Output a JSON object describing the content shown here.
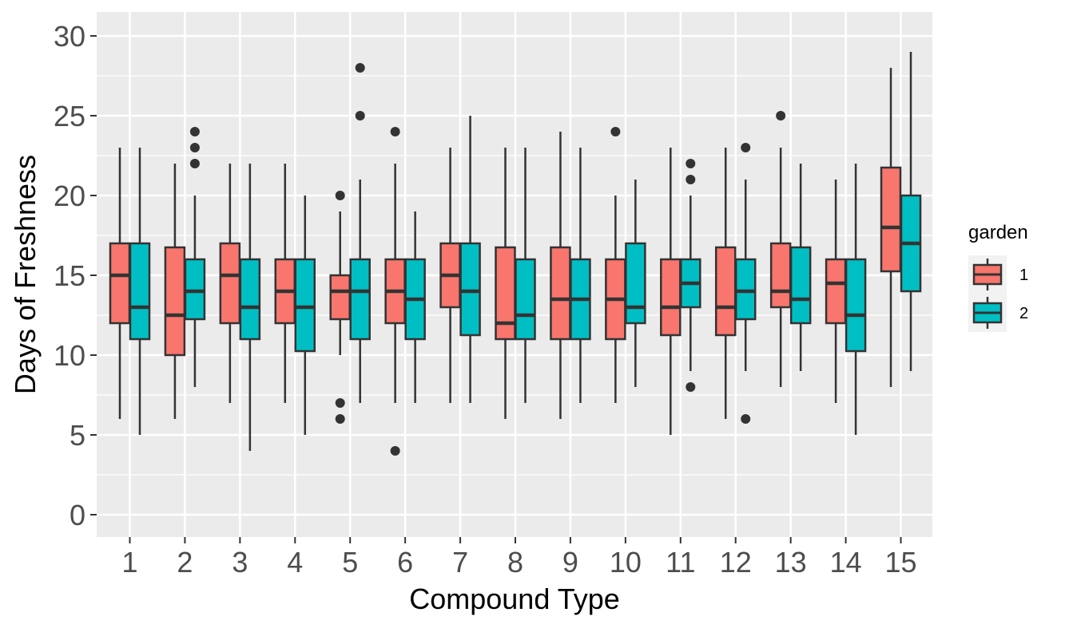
{
  "chart_data": {
    "type": "boxplot",
    "xlabel": "Compound Type",
    "ylabel": "Days of Freshness",
    "ylim": [
      -1.5,
      31.5
    ],
    "yticks": [
      0,
      5,
      10,
      15,
      20,
      25,
      30
    ],
    "categories": [
      "1",
      "2",
      "3",
      "4",
      "5",
      "6",
      "7",
      "8",
      "9",
      "10",
      "11",
      "12",
      "13",
      "14",
      "15"
    ],
    "grid": true,
    "legend": {
      "title": "garden",
      "position": "right"
    },
    "series": [
      {
        "name": "1",
        "color": "#F8766D",
        "boxes": [
          {
            "whisker_low": 6,
            "q1": 12,
            "median": 15,
            "q3": 17,
            "whisker_high": 23,
            "outliers": []
          },
          {
            "whisker_low": 6,
            "q1": 10,
            "median": 12.5,
            "q3": 16.75,
            "whisker_high": 22,
            "outliers": []
          },
          {
            "whisker_low": 7,
            "q1": 12,
            "median": 15,
            "q3": 17,
            "whisker_high": 22,
            "outliers": []
          },
          {
            "whisker_low": 7,
            "q1": 12,
            "median": 14,
            "q3": 16,
            "whisker_high": 22,
            "outliers": []
          },
          {
            "whisker_low": 10,
            "q1": 12.25,
            "median": 14,
            "q3": 15,
            "whisker_high": 19,
            "outliers": [
              20,
              7,
              6
            ]
          },
          {
            "whisker_low": 7,
            "q1": 12,
            "median": 14,
            "q3": 16,
            "whisker_high": 22,
            "outliers": [
              24,
              4
            ]
          },
          {
            "whisker_low": 7,
            "q1": 13,
            "median": 15,
            "q3": 17,
            "whisker_high": 23,
            "outliers": []
          },
          {
            "whisker_low": 6,
            "q1": 11,
            "median": 12,
            "q3": 16.75,
            "whisker_high": 23,
            "outliers": []
          },
          {
            "whisker_low": 6,
            "q1": 11,
            "median": 13.5,
            "q3": 16.75,
            "whisker_high": 24,
            "outliers": []
          },
          {
            "whisker_low": 7,
            "q1": 11,
            "median": 13.5,
            "q3": 16,
            "whisker_high": 20,
            "outliers": [
              24
            ]
          },
          {
            "whisker_low": 5,
            "q1": 11.25,
            "median": 13,
            "q3": 16,
            "whisker_high": 23,
            "outliers": []
          },
          {
            "whisker_low": 6,
            "q1": 11.25,
            "median": 13,
            "q3": 16.75,
            "whisker_high": 23,
            "outliers": []
          },
          {
            "whisker_low": 8,
            "q1": 13,
            "median": 14,
            "q3": 17,
            "whisker_high": 23,
            "outliers": [
              25
            ]
          },
          {
            "whisker_low": 7,
            "q1": 12,
            "median": 14.5,
            "q3": 16,
            "whisker_high": 21,
            "outliers": []
          },
          {
            "whisker_low": 8,
            "q1": 15.25,
            "median": 18,
            "q3": 21.75,
            "whisker_high": 28,
            "outliers": []
          }
        ]
      },
      {
        "name": "2",
        "color": "#00BFC4",
        "boxes": [
          {
            "whisker_low": 5,
            "q1": 11,
            "median": 13,
            "q3": 17,
            "whisker_high": 23,
            "outliers": []
          },
          {
            "whisker_low": 8,
            "q1": 12.25,
            "median": 14,
            "q3": 16,
            "whisker_high": 20,
            "outliers": [
              24,
              23,
              22
            ]
          },
          {
            "whisker_low": 4,
            "q1": 11,
            "median": 13,
            "q3": 16,
            "whisker_high": 22,
            "outliers": []
          },
          {
            "whisker_low": 5,
            "q1": 10.25,
            "median": 13,
            "q3": 16,
            "whisker_high": 20,
            "outliers": []
          },
          {
            "whisker_low": 7,
            "q1": 11,
            "median": 14,
            "q3": 16,
            "whisker_high": 21,
            "outliers": [
              28,
              25
            ]
          },
          {
            "whisker_low": 7,
            "q1": 11,
            "median": 13.5,
            "q3": 16,
            "whisker_high": 19,
            "outliers": []
          },
          {
            "whisker_low": 7,
            "q1": 11.25,
            "median": 14,
            "q3": 17,
            "whisker_high": 25,
            "outliers": []
          },
          {
            "whisker_low": 7,
            "q1": 11,
            "median": 12.5,
            "q3": 16,
            "whisker_high": 23,
            "outliers": []
          },
          {
            "whisker_low": 7,
            "q1": 11,
            "median": 13.5,
            "q3": 16,
            "whisker_high": 23,
            "outliers": []
          },
          {
            "whisker_low": 8,
            "q1": 12,
            "median": 13,
            "q3": 17,
            "whisker_high": 21,
            "outliers": []
          },
          {
            "whisker_low": 9,
            "q1": 13,
            "median": 14.5,
            "q3": 16,
            "whisker_high": 20,
            "outliers": [
              22,
              21,
              8
            ]
          },
          {
            "whisker_low": 9,
            "q1": 12.25,
            "median": 14,
            "q3": 16,
            "whisker_high": 21,
            "outliers": [
              23,
              6
            ]
          },
          {
            "whisker_low": 9,
            "q1": 12,
            "median": 13.5,
            "q3": 16.75,
            "whisker_high": 22,
            "outliers": []
          },
          {
            "whisker_low": 5,
            "q1": 10.25,
            "median": 12.5,
            "q3": 16,
            "whisker_high": 22,
            "outliers": []
          },
          {
            "whisker_low": 9,
            "q1": 14,
            "median": 17,
            "q3": 20,
            "whisker_high": 29,
            "outliers": []
          }
        ]
      }
    ]
  }
}
